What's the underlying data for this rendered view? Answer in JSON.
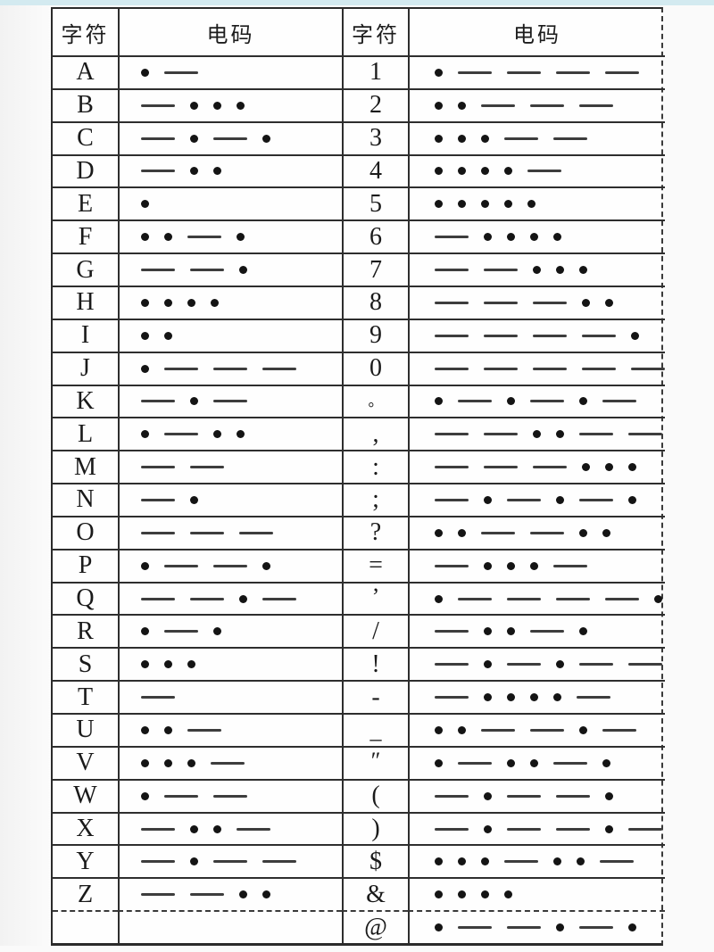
{
  "table": {
    "headers": [
      "字符",
      "电码",
      "字符",
      "电码"
    ],
    "rows": [
      {
        "lc": "A",
        "lm": ".-",
        "rc": "1",
        "rm": ".----"
      },
      {
        "lc": "B",
        "lm": "-...",
        "rc": "2",
        "rm": "..---"
      },
      {
        "lc": "C",
        "lm": "-.-.",
        "rc": "3",
        "rm": "...--"
      },
      {
        "lc": "D",
        "lm": "-..",
        "rc": "4",
        "rm": "....-"
      },
      {
        "lc": "E",
        "lm": ".",
        "rc": "5",
        "rm": "....."
      },
      {
        "lc": "F",
        "lm": "..-.",
        "rc": "6",
        "rm": "-...."
      },
      {
        "lc": "G",
        "lm": "--.",
        "rc": "7",
        "rm": "--..."
      },
      {
        "lc": "H",
        "lm": "....",
        "rc": "8",
        "rm": "---.."
      },
      {
        "lc": "I",
        "lm": "..",
        "rc": "9",
        "rm": "----."
      },
      {
        "lc": "J",
        "lm": ".---",
        "rc": "0",
        "rm": "-----"
      },
      {
        "lc": "K",
        "lm": "-.-",
        "rc": "。",
        "rm": ".-.-.-"
      },
      {
        "lc": "L",
        "lm": ".-..",
        "rc": ",",
        "rm": "--..--"
      },
      {
        "lc": "M",
        "lm": "--",
        "rc": ":",
        "rm": "---..."
      },
      {
        "lc": "N",
        "lm": "-.",
        "rc": ";",
        "rm": "-.-.-."
      },
      {
        "lc": "O",
        "lm": "---",
        "rc": "?",
        "rm": "..--.."
      },
      {
        "lc": "P",
        "lm": ".--.",
        "rc": "=",
        "rm": "-...-"
      },
      {
        "lc": "Q",
        "lm": "--.-",
        "rc": "’",
        "rm": ".----."
      },
      {
        "lc": "R",
        "lm": ".-.",
        "rc": "/",
        "rm": "-..-."
      },
      {
        "lc": "S",
        "lm": "...",
        "rc": "!",
        "rm": "-.-.--"
      },
      {
        "lc": "T",
        "lm": "-",
        "rc": "-",
        "rm": "-....-"
      },
      {
        "lc": "U",
        "lm": "..-",
        "rc": "_",
        "rm": "..--.-"
      },
      {
        "lc": "V",
        "lm": "...-",
        "rc": "″",
        "rm": ".-..-."
      },
      {
        "lc": "W",
        "lm": ".--",
        "rc": "(",
        "rm": "-.--."
      },
      {
        "lc": "X",
        "lm": "-..-",
        "rc": ")",
        "rm": "-.--.-"
      },
      {
        "lc": "Y",
        "lm": "-.--",
        "rc": "$",
        "rm": "...-..-"
      },
      {
        "lc": "Z",
        "lm": "--..",
        "rc": "&",
        "rm": "...."
      },
      {
        "lc": "",
        "lm": "",
        "rc": "@",
        "rm": ".--.-."
      }
    ]
  }
}
